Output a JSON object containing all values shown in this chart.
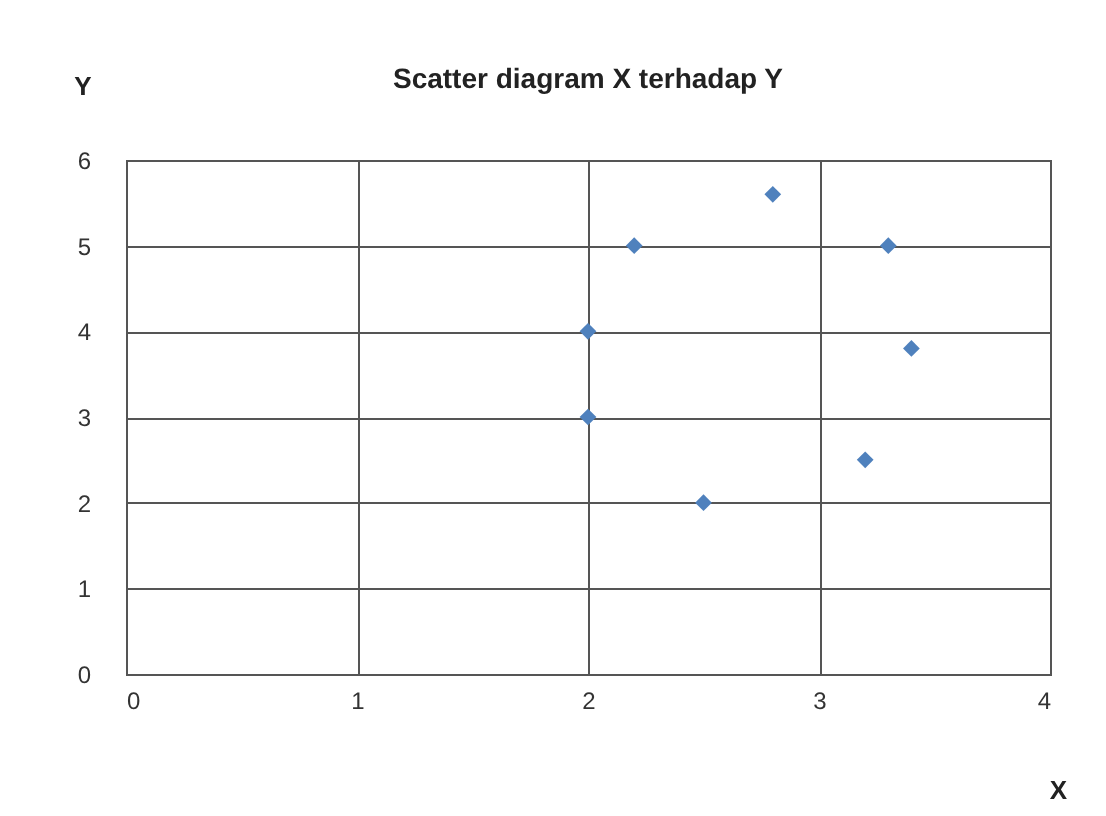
{
  "chart_data": {
    "type": "scatter",
    "title": "Scatter diagram X terhadap Y",
    "xlabel": "X",
    "ylabel": "Y",
    "x": [
      2.2,
      2.8,
      3.3,
      2,
      3.4,
      2,
      3.2,
      2.5
    ],
    "values": [
      5,
      5.6,
      5,
      4,
      3.8,
      3,
      2.5,
      2
    ],
    "color": "#4f81bd",
    "marker": "diamond",
    "grid": true,
    "xlim": [
      0,
      4
    ],
    "xticks": [
      0,
      1,
      2,
      3,
      4
    ],
    "ylim": [
      0,
      6
    ],
    "yticks": [
      0,
      1,
      2,
      3,
      4,
      5,
      6
    ]
  }
}
